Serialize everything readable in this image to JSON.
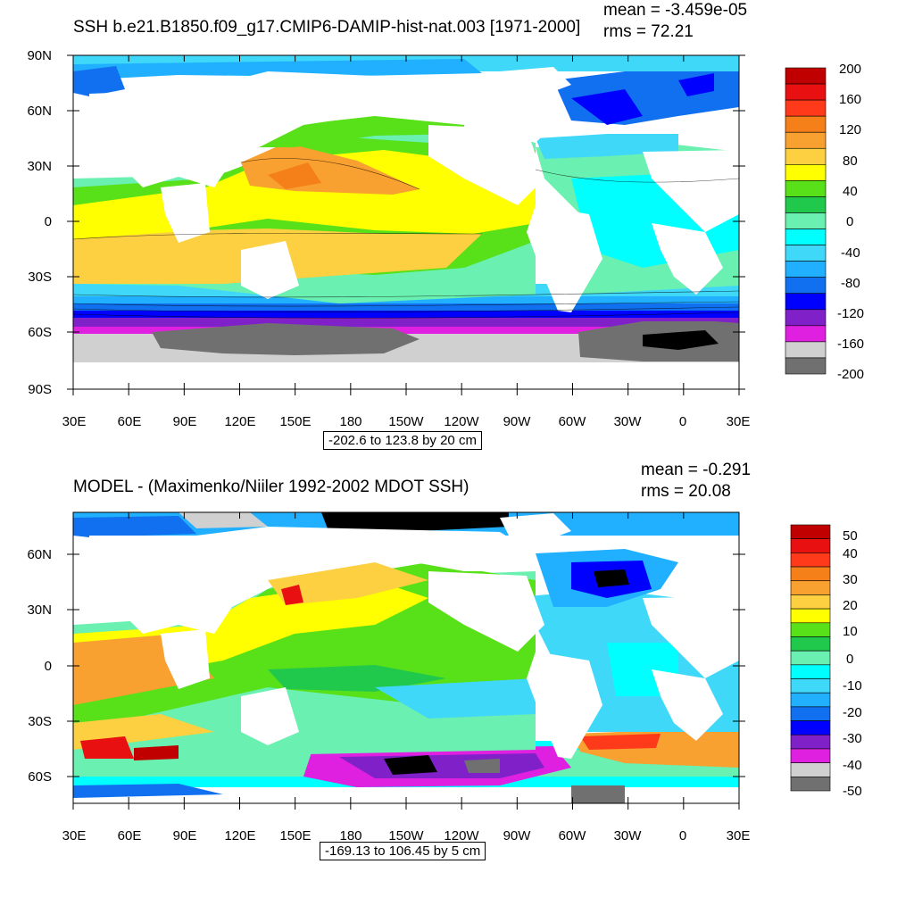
{
  "panels": [
    {
      "title": "SSH b.e21.B1850.f09_g17.CMIP6-DAMIP-hist-nat.003 [1971-2000]",
      "stats": {
        "mean": "mean = -3.459e-05",
        "rms": "rms = 72.21"
      },
      "range_label": "-202.6 to 123.8 by 20 cm",
      "lat_labels": [
        "90N",
        "60N",
        "30N",
        "0",
        "30S",
        "60S",
        "90S"
      ],
      "lon_labels": [
        "30E",
        "60E",
        "90E",
        "120E",
        "150E",
        "180",
        "150W",
        "120W",
        "90W",
        "60W",
        "30W",
        "0",
        "30E"
      ],
      "colorbar": {
        "labels": [
          "200",
          "160",
          "120",
          "80",
          "40",
          "0",
          "-40",
          "-80",
          "-120",
          "-160",
          "-200"
        ],
        "colors": [
          "#c00000",
          "#e81010",
          "#ff3a1a",
          "#f5801a",
          "#f8a030",
          "#fcd040",
          "#ffff00",
          "#58e018",
          "#20c84c",
          "#6af0b0",
          "#00ffff",
          "#40d8f8",
          "#20b0ff",
          "#1070f0",
          "#0000ff",
          "#8020c8",
          "#e020e0",
          "#d0d0d0",
          "#707070"
        ]
      }
    },
    {
      "title": "MODEL - (Maximenko/Niiler 1992-2002 MDOT SSH)",
      "stats": {
        "mean": "mean = -0.291",
        "rms": "rms = 20.08"
      },
      "range_label": "-169.13 to 106.45 by 5 cm",
      "lat_labels": [
        "60N",
        "30N",
        "0",
        "30S",
        "60S"
      ],
      "lon_labels": [
        "30E",
        "60E",
        "90E",
        "120E",
        "150E",
        "180",
        "150W",
        "120W",
        "90W",
        "60W",
        "30W",
        "0",
        "30E"
      ],
      "colorbar": {
        "labels": [
          "50",
          "40",
          "30",
          "20",
          "10",
          "0",
          "-10",
          "-20",
          "-30",
          "-40",
          "-50"
        ],
        "colors": [
          "#c00000",
          "#e81010",
          "#ff3a1a",
          "#f5801a",
          "#f8a030",
          "#fcd040",
          "#ffff00",
          "#58e018",
          "#20c84c",
          "#6af0b0",
          "#00ffff",
          "#40d8f8",
          "#20b0ff",
          "#1070f0",
          "#0000ff",
          "#8020c8",
          "#e020e0",
          "#d0d0d0",
          "#707070"
        ]
      }
    }
  ]
}
